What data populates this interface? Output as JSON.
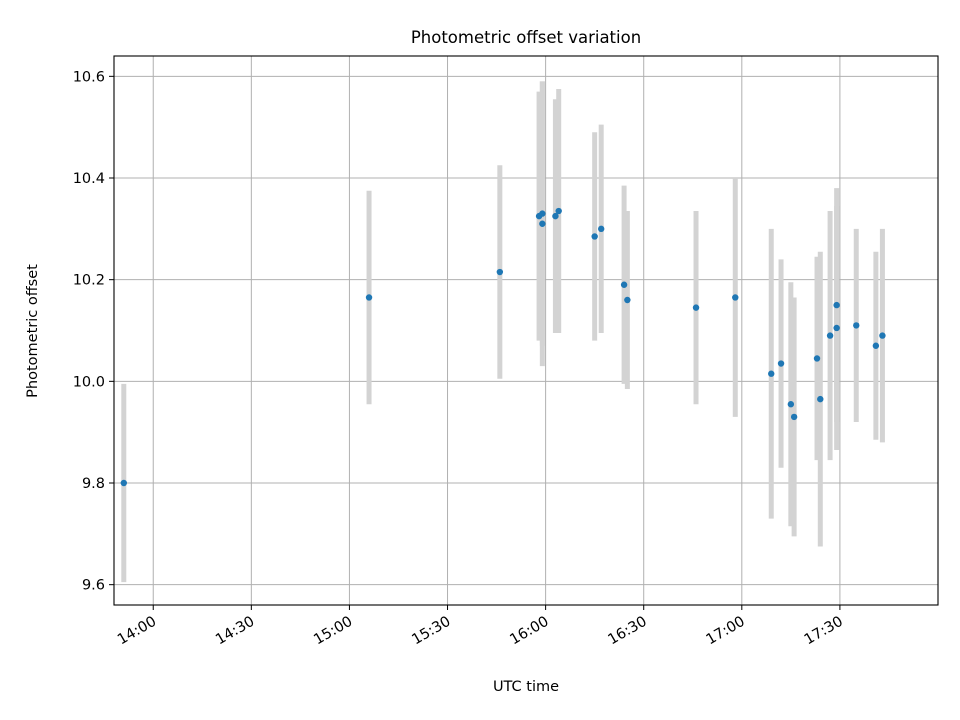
{
  "chart_data": {
    "type": "scatter",
    "title": "Photometric offset variation",
    "xlabel": "UTC time",
    "ylabel": "Photometric offset",
    "xlim": [
      "13:48",
      "18:00"
    ],
    "ylim": [
      9.56,
      10.64
    ],
    "x_ticks": [
      "14:00",
      "14:30",
      "15:00",
      "15:30",
      "16:00",
      "16:30",
      "17:00",
      "17:30"
    ],
    "y_ticks": [
      "9.6",
      "9.8",
      "10.0",
      "10.2",
      "10.4",
      "10.6"
    ],
    "grid": true,
    "point_color": "#1f77b4",
    "errorbar_color": "#d3d3d3",
    "points": [
      {
        "x": "13:51",
        "y": 9.8,
        "err": 0.195
      },
      {
        "x": "15:06",
        "y": 10.165,
        "err": 0.21
      },
      {
        "x": "15:46",
        "y": 10.215,
        "err": 0.21
      },
      {
        "x": "15:58",
        "y": 10.325,
        "err": 0.245
      },
      {
        "x": "15:59",
        "y": 10.31,
        "err": 0.28
      },
      {
        "x": "15:59",
        "y": 10.33,
        "err": 0.26
      },
      {
        "x": "16:03",
        "y": 10.325,
        "err": 0.23
      },
      {
        "x": "16:04",
        "y": 10.335,
        "err": 0.24
      },
      {
        "x": "16:15",
        "y": 10.285,
        "err": 0.205
      },
      {
        "x": "16:17",
        "y": 10.3,
        "err": 0.205
      },
      {
        "x": "16:24",
        "y": 10.19,
        "err": 0.195
      },
      {
        "x": "16:25",
        "y": 10.16,
        "err": 0.175
      },
      {
        "x": "16:46",
        "y": 10.145,
        "err": 0.19
      },
      {
        "x": "16:58",
        "y": 10.165,
        "err": 0.235
      },
      {
        "x": "17:09",
        "y": 10.015,
        "err": 0.285
      },
      {
        "x": "17:12",
        "y": 10.035,
        "err": 0.205
      },
      {
        "x": "17:15",
        "y": 9.955,
        "err": 0.24
      },
      {
        "x": "17:16",
        "y": 9.93,
        "err": 0.235
      },
      {
        "x": "17:23",
        "y": 10.045,
        "err": 0.2
      },
      {
        "x": "17:24",
        "y": 9.965,
        "err": 0.29
      },
      {
        "x": "17:27",
        "y": 10.09,
        "err": 0.245
      },
      {
        "x": "17:29",
        "y": 10.15,
        "err": 0.23
      },
      {
        "x": "17:29",
        "y": 10.105,
        "err": 0.24
      },
      {
        "x": "17:35",
        "y": 10.11,
        "err": 0.19
      },
      {
        "x": "17:41",
        "y": 10.07,
        "err": 0.185
      },
      {
        "x": "17:43",
        "y": 10.09,
        "err": 0.21
      }
    ]
  }
}
